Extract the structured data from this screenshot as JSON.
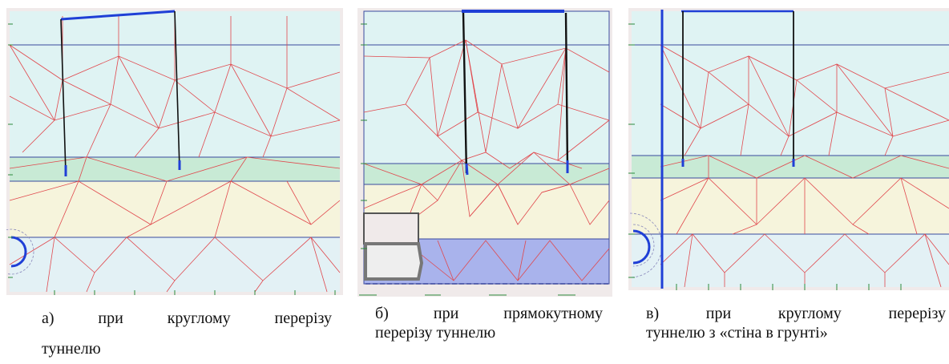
{
  "figures": [
    {
      "id": "a",
      "caption_line1": [
        "а)",
        "при",
        "круглому",
        "перерізу"
      ],
      "caption_line2": "туннелю"
    },
    {
      "id": "b",
      "caption_line1": [
        "б)",
        "при",
        "прямокутному"
      ],
      "caption_line2": "перерізу туннелю"
    },
    {
      "id": "c",
      "caption_line1": [
        "в)",
        "при",
        "круглому",
        "перерізу"
      ],
      "caption_line2": "туннелю з «стіна в грунті»"
    }
  ],
  "colors": {
    "soil_top": "#dff3f3",
    "soil_green": "#c8ead5",
    "soil_cream": "#f6f4dc",
    "soil_bottom": "#e3f1f5",
    "soil_blue": "#a9b3ec",
    "mesh": "#e0474c",
    "struct_blue": "#1f3fd6",
    "pile": "#111111"
  }
}
